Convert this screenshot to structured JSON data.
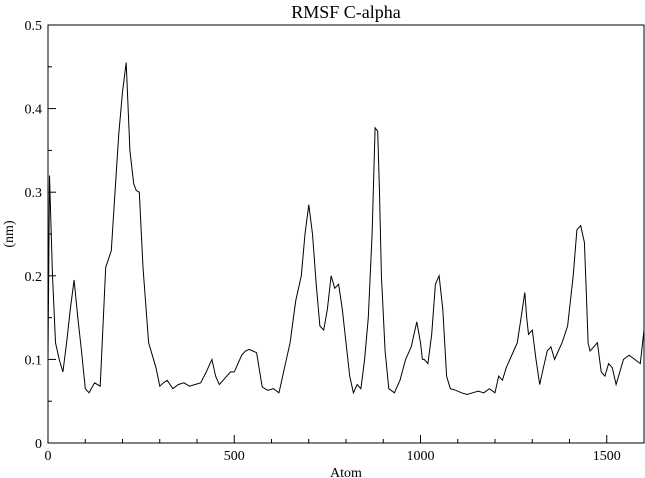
{
  "chart_data": {
    "type": "line",
    "title": "RMSF C-alpha",
    "xlabel": "Atom",
    "ylabel": "(nm)",
    "xlim": [
      0,
      1600
    ],
    "ylim": [
      0,
      0.5
    ],
    "grid": false,
    "legend": "none",
    "x_ticks": [
      "0",
      "500",
      "1000",
      "1500"
    ],
    "y_ticks": [
      "0",
      "0.1",
      "0.2",
      "0.3",
      "0.4",
      "0.5"
    ],
    "series": [
      {
        "color": "#000000",
        "x": [
          0,
          4,
          12,
          20,
          30,
          40,
          50,
          60,
          70,
          80,
          90,
          100,
          110,
          125,
          140,
          155,
          170,
          180,
          190,
          200,
          210,
          220,
          230,
          237,
          245,
          255,
          270,
          280,
          290,
          300,
          310,
          320,
          335,
          350,
          365,
          380,
          395,
          410,
          425,
          440,
          450,
          460,
          470,
          480,
          490,
          500,
          510,
          520,
          530,
          540,
          550,
          560,
          575,
          590,
          605,
          620,
          635,
          650,
          665,
          680,
          690,
          700,
          710,
          720,
          730,
          740,
          750,
          760,
          770,
          780,
          790,
          800,
          810,
          820,
          830,
          840,
          850,
          860,
          870,
          878,
          885,
          890,
          895,
          905,
          915,
          930,
          945,
          960,
          975,
          990,
          1000,
          1005,
          1010,
          1020,
          1030,
          1040,
          1050,
          1060,
          1070,
          1080,
          1095,
          1110,
          1125,
          1140,
          1155,
          1170,
          1185,
          1200,
          1210,
          1220,
          1230,
          1240,
          1250,
          1260,
          1270,
          1280,
          1285,
          1290,
          1300,
          1310,
          1320,
          1330,
          1340,
          1350,
          1360,
          1370,
          1380,
          1395,
          1410,
          1420,
          1430,
          1440,
          1445,
          1450,
          1455,
          1465,
          1475,
          1485,
          1495,
          1505,
          1515,
          1525,
          1535,
          1545,
          1560,
          1575,
          1590,
          1600
        ],
        "values": [
          0.1,
          0.32,
          0.2,
          0.12,
          0.1,
          0.085,
          0.12,
          0.16,
          0.195,
          0.15,
          0.11,
          0.065,
          0.06,
          0.072,
          0.068,
          0.21,
          0.23,
          0.3,
          0.37,
          0.42,
          0.455,
          0.35,
          0.31,
          0.302,
          0.3,
          0.21,
          0.12,
          0.105,
          0.09,
          0.068,
          0.072,
          0.075,
          0.065,
          0.07,
          0.072,
          0.068,
          0.07,
          0.072,
          0.085,
          0.1,
          0.08,
          0.07,
          0.075,
          0.08,
          0.085,
          0.085,
          0.095,
          0.105,
          0.11,
          0.112,
          0.11,
          0.108,
          0.067,
          0.063,
          0.065,
          0.06,
          0.09,
          0.12,
          0.17,
          0.2,
          0.25,
          0.285,
          0.25,
          0.19,
          0.14,
          0.135,
          0.16,
          0.2,
          0.185,
          0.19,
          0.16,
          0.12,
          0.08,
          0.06,
          0.07,
          0.065,
          0.1,
          0.15,
          0.25,
          0.377,
          0.373,
          0.3,
          0.2,
          0.11,
          0.065,
          0.06,
          0.075,
          0.1,
          0.115,
          0.145,
          0.12,
          0.1,
          0.1,
          0.095,
          0.13,
          0.19,
          0.2,
          0.16,
          0.08,
          0.065,
          0.063,
          0.06,
          0.058,
          0.06,
          0.062,
          0.06,
          0.065,
          0.06,
          0.08,
          0.075,
          0.09,
          0.1,
          0.11,
          0.12,
          0.15,
          0.18,
          0.15,
          0.13,
          0.135,
          0.1,
          0.07,
          0.09,
          0.11,
          0.115,
          0.1,
          0.11,
          0.12,
          0.14,
          0.2,
          0.255,
          0.26,
          0.24,
          0.18,
          0.12,
          0.11,
          0.115,
          0.12,
          0.085,
          0.08,
          0.095,
          0.09,
          0.07,
          0.085,
          0.1,
          0.105,
          0.1,
          0.095,
          0.135
        ]
      }
    ]
  }
}
